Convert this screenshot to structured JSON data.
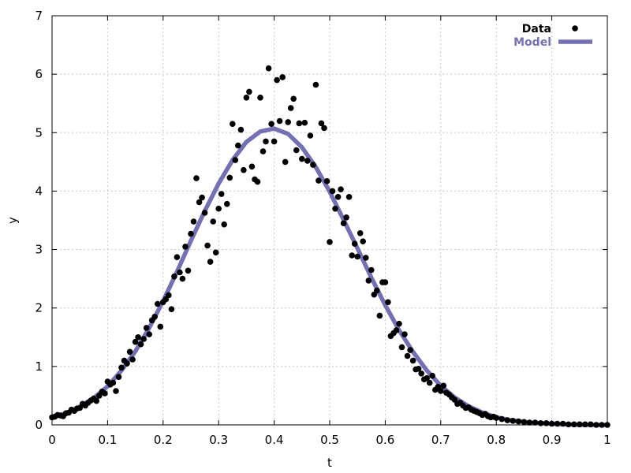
{
  "chart_data": {
    "type": "scatter",
    "title": "",
    "xlabel": "t",
    "ylabel": "y",
    "xlim": [
      0,
      1
    ],
    "ylim": [
      0,
      7
    ],
    "x_ticks": [
      "0",
      "0.1",
      "0.2",
      "0.3",
      "0.4",
      "0.5",
      "0.6",
      "0.7",
      "0.8",
      "0.9",
      "1"
    ],
    "y_ticks": [
      "0",
      "1",
      "2",
      "3",
      "4",
      "5",
      "6",
      "7"
    ],
    "grid": true,
    "legend_position": "top-right",
    "series": [
      {
        "name": "Data",
        "kind": "scatter",
        "color": "#000000",
        "points": [
          [
            0.0,
            0.13
          ],
          [
            0.005,
            0.14
          ],
          [
            0.01,
            0.17
          ],
          [
            0.015,
            0.16
          ],
          [
            0.02,
            0.15
          ],
          [
            0.025,
            0.2
          ],
          [
            0.03,
            0.21
          ],
          [
            0.035,
            0.26
          ],
          [
            0.04,
            0.24
          ],
          [
            0.045,
            0.28
          ],
          [
            0.05,
            0.29
          ],
          [
            0.055,
            0.36
          ],
          [
            0.06,
            0.33
          ],
          [
            0.065,
            0.38
          ],
          [
            0.07,
            0.42
          ],
          [
            0.075,
            0.45
          ],
          [
            0.08,
            0.41
          ],
          [
            0.085,
            0.5
          ],
          [
            0.09,
            0.57
          ],
          [
            0.095,
            0.54
          ],
          [
            0.1,
            0.74
          ],
          [
            0.105,
            0.69
          ],
          [
            0.11,
            0.72
          ],
          [
            0.115,
            0.58
          ],
          [
            0.12,
            0.82
          ],
          [
            0.125,
            0.98
          ],
          [
            0.13,
            1.1
          ],
          [
            0.135,
            1.05
          ],
          [
            0.14,
            1.25
          ],
          [
            0.145,
            1.12
          ],
          [
            0.15,
            1.42
          ],
          [
            0.155,
            1.5
          ],
          [
            0.16,
            1.38
          ],
          [
            0.165,
            1.47
          ],
          [
            0.17,
            1.66
          ],
          [
            0.175,
            1.55
          ],
          [
            0.18,
            1.79
          ],
          [
            0.185,
            1.85
          ],
          [
            0.19,
            2.07
          ],
          [
            0.195,
            1.68
          ],
          [
            0.2,
            2.1
          ],
          [
            0.205,
            2.15
          ],
          [
            0.21,
            2.22
          ],
          [
            0.215,
            1.98
          ],
          [
            0.22,
            2.54
          ],
          [
            0.225,
            2.87
          ],
          [
            0.23,
            2.61
          ],
          [
            0.235,
            2.5
          ],
          [
            0.24,
            3.05
          ],
          [
            0.245,
            2.64
          ],
          [
            0.25,
            3.27
          ],
          [
            0.255,
            3.48
          ],
          [
            0.26,
            4.22
          ],
          [
            0.265,
            3.81
          ],
          [
            0.27,
            3.89
          ],
          [
            0.275,
            3.63
          ],
          [
            0.28,
            3.07
          ],
          [
            0.285,
            2.79
          ],
          [
            0.29,
            3.48
          ],
          [
            0.295,
            2.95
          ],
          [
            0.3,
            3.7
          ],
          [
            0.305,
            3.95
          ],
          [
            0.31,
            3.43
          ],
          [
            0.315,
            3.78
          ],
          [
            0.32,
            4.23
          ],
          [
            0.325,
            5.15
          ],
          [
            0.33,
            4.53
          ],
          [
            0.335,
            4.78
          ],
          [
            0.34,
            5.05
          ],
          [
            0.345,
            4.36
          ],
          [
            0.35,
            5.6
          ],
          [
            0.355,
            5.7
          ],
          [
            0.36,
            4.42
          ],
          [
            0.365,
            4.2
          ],
          [
            0.37,
            4.16
          ],
          [
            0.375,
            5.6
          ],
          [
            0.38,
            4.68
          ],
          [
            0.385,
            4.85
          ],
          [
            0.39,
            6.1
          ],
          [
            0.395,
            5.15
          ],
          [
            0.4,
            4.85
          ],
          [
            0.405,
            5.9
          ],
          [
            0.41,
            5.2
          ],
          [
            0.415,
            5.95
          ],
          [
            0.42,
            4.5
          ],
          [
            0.425,
            5.18
          ],
          [
            0.43,
            5.42
          ],
          [
            0.435,
            5.58
          ],
          [
            0.44,
            4.7
          ],
          [
            0.445,
            5.16
          ],
          [
            0.45,
            4.55
          ],
          [
            0.455,
            5.17
          ],
          [
            0.46,
            4.52
          ],
          [
            0.465,
            4.95
          ],
          [
            0.47,
            4.45
          ],
          [
            0.475,
            5.82
          ],
          [
            0.48,
            4.18
          ],
          [
            0.485,
            5.16
          ],
          [
            0.49,
            5.08
          ],
          [
            0.495,
            4.17
          ],
          [
            0.5,
            3.13
          ],
          [
            0.505,
            4.0
          ],
          [
            0.51,
            3.7
          ],
          [
            0.515,
            3.9
          ],
          [
            0.52,
            4.03
          ],
          [
            0.525,
            3.45
          ],
          [
            0.53,
            3.55
          ],
          [
            0.535,
            3.9
          ],
          [
            0.54,
            2.9
          ],
          [
            0.545,
            3.1
          ],
          [
            0.55,
            2.88
          ],
          [
            0.555,
            3.28
          ],
          [
            0.56,
            3.14
          ],
          [
            0.565,
            2.86
          ],
          [
            0.57,
            2.47
          ],
          [
            0.575,
            2.65
          ],
          [
            0.58,
            2.23
          ],
          [
            0.585,
            2.3
          ],
          [
            0.59,
            1.87
          ],
          [
            0.595,
            2.44
          ],
          [
            0.6,
            2.44
          ],
          [
            0.605,
            2.1
          ],
          [
            0.61,
            1.52
          ],
          [
            0.615,
            1.57
          ],
          [
            0.62,
            1.62
          ],
          [
            0.625,
            1.73
          ],
          [
            0.63,
            1.33
          ],
          [
            0.635,
            1.55
          ],
          [
            0.64,
            1.18
          ],
          [
            0.645,
            1.28
          ],
          [
            0.65,
            1.1
          ],
          [
            0.655,
            0.95
          ],
          [
            0.66,
            0.96
          ],
          [
            0.665,
            0.88
          ],
          [
            0.67,
            0.78
          ],
          [
            0.675,
            0.8
          ],
          [
            0.68,
            0.72
          ],
          [
            0.685,
            0.84
          ],
          [
            0.69,
            0.6
          ],
          [
            0.695,
            0.65
          ],
          [
            0.7,
            0.58
          ],
          [
            0.705,
            0.67
          ],
          [
            0.71,
            0.55
          ],
          [
            0.715,
            0.52
          ],
          [
            0.72,
            0.47
          ],
          [
            0.725,
            0.43
          ],
          [
            0.73,
            0.36
          ],
          [
            0.735,
            0.38
          ],
          [
            0.74,
            0.33
          ],
          [
            0.745,
            0.29
          ],
          [
            0.75,
            0.3
          ],
          [
            0.755,
            0.26
          ],
          [
            0.76,
            0.24
          ],
          [
            0.765,
            0.22
          ],
          [
            0.77,
            0.2
          ],
          [
            0.775,
            0.17
          ],
          [
            0.78,
            0.19
          ],
          [
            0.785,
            0.15
          ],
          [
            0.79,
            0.13
          ],
          [
            0.795,
            0.14
          ],
          [
            0.8,
            0.12
          ],
          [
            0.81,
            0.1
          ],
          [
            0.82,
            0.08
          ],
          [
            0.83,
            0.07
          ],
          [
            0.84,
            0.06
          ],
          [
            0.85,
            0.05
          ],
          [
            0.86,
            0.04
          ],
          [
            0.87,
            0.04
          ],
          [
            0.88,
            0.03
          ],
          [
            0.89,
            0.03
          ],
          [
            0.9,
            0.02
          ],
          [
            0.91,
            0.02
          ],
          [
            0.92,
            0.02
          ],
          [
            0.93,
            0.01
          ],
          [
            0.94,
            0.01
          ],
          [
            0.95,
            0.01
          ],
          [
            0.96,
            0.01
          ],
          [
            0.97,
            0.01
          ],
          [
            0.98,
            0.0
          ],
          [
            0.99,
            0.0
          ],
          [
            1.0,
            0.0
          ]
        ]
      },
      {
        "name": "Model",
        "kind": "line",
        "color": "#7570b3",
        "points": [
          [
            0.0,
            0.13
          ],
          [
            0.025,
            0.2
          ],
          [
            0.05,
            0.31
          ],
          [
            0.075,
            0.46
          ],
          [
            0.1,
            0.66
          ],
          [
            0.125,
            0.93
          ],
          [
            0.15,
            1.26
          ],
          [
            0.175,
            1.66
          ],
          [
            0.2,
            2.12
          ],
          [
            0.225,
            2.62
          ],
          [
            0.25,
            3.15
          ],
          [
            0.275,
            3.66
          ],
          [
            0.3,
            4.13
          ],
          [
            0.325,
            4.53
          ],
          [
            0.35,
            4.84
          ],
          [
            0.375,
            5.02
          ],
          [
            0.4,
            5.07
          ],
          [
            0.425,
            4.98
          ],
          [
            0.45,
            4.75
          ],
          [
            0.475,
            4.41
          ],
          [
            0.5,
            3.99
          ],
          [
            0.525,
            3.51
          ],
          [
            0.55,
            3.02
          ],
          [
            0.575,
            2.52
          ],
          [
            0.6,
            2.05
          ],
          [
            0.625,
            1.62
          ],
          [
            0.65,
            1.25
          ],
          [
            0.675,
            0.93
          ],
          [
            0.7,
            0.67
          ],
          [
            0.725,
            0.47
          ],
          [
            0.75,
            0.32
          ],
          [
            0.775,
            0.21
          ],
          [
            0.8,
            0.13
          ],
          [
            0.825,
            0.08
          ],
          [
            0.85,
            0.05
          ],
          [
            0.875,
            0.03
          ],
          [
            0.9,
            0.02
          ],
          [
            0.925,
            0.01
          ],
          [
            0.95,
            0.0
          ],
          [
            0.975,
            0.0
          ],
          [
            1.0,
            0.0
          ]
        ]
      }
    ]
  }
}
